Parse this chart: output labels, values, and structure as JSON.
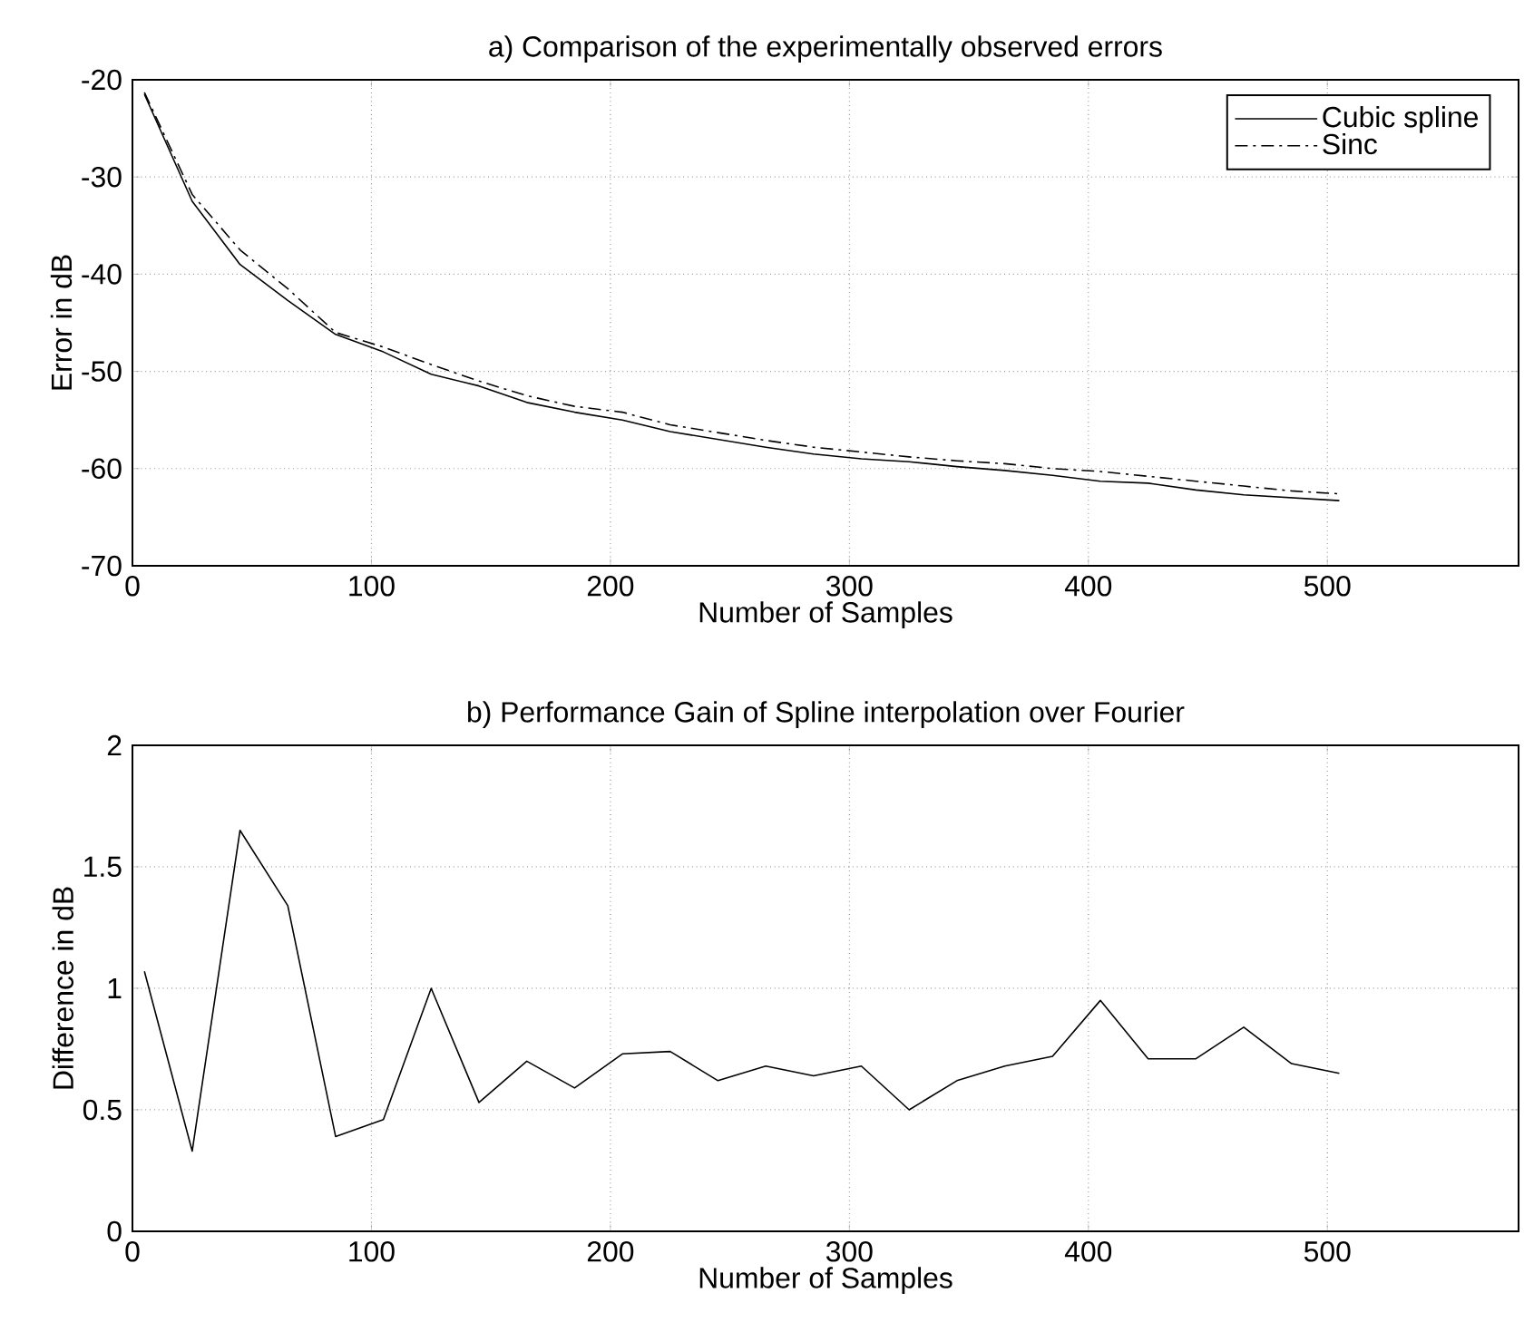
{
  "chart_data": [
    {
      "type": "line",
      "title": "a) Comparison of the experimentally observed errors",
      "xlabel": "Number of Samples",
      "ylabel": "Error in dB",
      "x": [
        5,
        25,
        45,
        65,
        85,
        105,
        125,
        145,
        165,
        185,
        205,
        225,
        245,
        265,
        285,
        305,
        325,
        345,
        365,
        385,
        405,
        425,
        445,
        465,
        485,
        505
      ],
      "xlim": [
        0,
        580
      ],
      "ylim": [
        -70,
        -20
      ],
      "xticks": [
        0,
        100,
        200,
        300,
        400,
        500
      ],
      "yticks": [
        -70,
        -60,
        -50,
        -40,
        -30,
        -20
      ],
      "grid": true,
      "legend": "top right",
      "series": [
        {
          "name": "Cubic spline",
          "color": "#000000",
          "line_style": "solid",
          "values": [
            -21.5,
            -32.5,
            -39,
            -42.7,
            -46.2,
            -48,
            -50.3,
            -51.5,
            -53.2,
            -54.2,
            -55,
            -56.2,
            -57,
            -57.8,
            -58.5,
            -59,
            -59.3,
            -59.8,
            -60.2,
            -60.7,
            -61.3,
            -61.5,
            -62.2,
            -62.7,
            -63,
            -63.3
          ]
        },
        {
          "name": "Sinc",
          "color": "#000000",
          "line_style": "dashdot",
          "values": [
            -21.3,
            -31.8,
            -37.5,
            -41.5,
            -46,
            -47.5,
            -49.3,
            -51,
            -52.5,
            -53.6,
            -54.2,
            -55.5,
            -56.3,
            -57.1,
            -57.8,
            -58.3,
            -58.8,
            -59.2,
            -59.5,
            -60,
            -60.3,
            -60.8,
            -61.3,
            -61.8,
            -62.3,
            -62.6
          ]
        }
      ]
    },
    {
      "type": "line",
      "title": "b) Performance Gain of Spline interpolation over Fourier",
      "xlabel": "Number of Samples",
      "ylabel": "Difference in dB",
      "x": [
        5,
        25,
        45,
        65,
        85,
        105,
        125,
        145,
        165,
        185,
        205,
        225,
        245,
        265,
        285,
        305,
        325,
        345,
        365,
        385,
        405,
        425,
        445,
        465,
        485,
        505
      ],
      "xlim": [
        0,
        580
      ],
      "ylim": [
        0,
        2
      ],
      "xticks": [
        0,
        100,
        200,
        300,
        400,
        500
      ],
      "yticks": [
        0,
        0.5,
        1,
        1.5,
        2
      ],
      "grid": true,
      "series": [
        {
          "color": "#000000",
          "line_style": "solid",
          "values": [
            1.07,
            0.33,
            1.65,
            1.34,
            0.39,
            0.46,
            1.0,
            0.53,
            0.7,
            0.59,
            0.73,
            0.74,
            0.62,
            0.68,
            0.64,
            0.68,
            0.5,
            0.62,
            0.68,
            0.72,
            0.95,
            0.71,
            0.71,
            0.84,
            0.69,
            0.65
          ]
        }
      ]
    }
  ]
}
